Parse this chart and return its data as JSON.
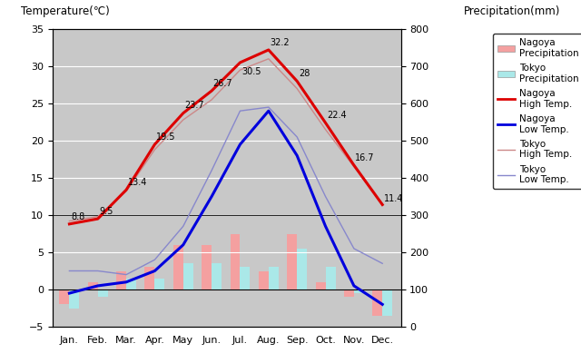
{
  "months": [
    "Jan.",
    "Feb.",
    "Mar.",
    "Apr.",
    "May",
    "Jun.",
    "Jul.",
    "Aug.",
    "Sep.",
    "Oct.",
    "Nov.",
    "Dec."
  ],
  "nagoya_high": [
    8.8,
    9.5,
    13.4,
    19.5,
    23.7,
    26.7,
    30.5,
    32.2,
    28.0,
    22.4,
    16.7,
    11.4
  ],
  "nagoya_low": [
    -0.5,
    0.5,
    1.0,
    2.5,
    6.0,
    12.5,
    19.5,
    24.0,
    18.0,
    8.5,
    0.5,
    -2.0
  ],
  "tokyo_high": [
    9.2,
    9.8,
    13.2,
    18.8,
    22.8,
    25.5,
    29.5,
    31.0,
    27.0,
    21.5,
    16.5,
    11.5
  ],
  "tokyo_low": [
    2.5,
    2.5,
    2.0,
    4.0,
    8.5,
    16.0,
    24.0,
    24.5,
    20.5,
    12.5,
    5.5,
    3.5
  ],
  "nagoya_precip_vals": [
    -2.0,
    1.0,
    2.5,
    3.0,
    6.0,
    6.0,
    7.5,
    2.5,
    7.5,
    1.0,
    -1.0,
    -3.5
  ],
  "tokyo_precip_vals": [
    -2.5,
    -1.0,
    1.5,
    1.5,
    3.5,
    3.5,
    3.0,
    3.0,
    5.5,
    3.0,
    -0.5,
    -3.5
  ],
  "nagoya_high_labels": [
    "8.8",
    "9.5",
    "13.4",
    "19.5",
    "23.7",
    "26.7",
    "30.5",
    "32.2",
    "28",
    "22.4",
    "16.7",
    "11.4"
  ],
  "bg_color": "#c8c8c8",
  "ylim_left": [
    -5,
    35
  ],
  "bar_width": 0.35,
  "nagoya_precip_color": "#f4a0a0",
  "tokyo_precip_color": "#aae8e8",
  "nagoya_high_color": "#dd0000",
  "nagoya_low_color": "#0000dd",
  "tokyo_high_color": "#cc8888",
  "tokyo_low_color": "#8888cc",
  "label_left": "Temperature(℃)",
  "label_right": "Precipitation(mm)"
}
